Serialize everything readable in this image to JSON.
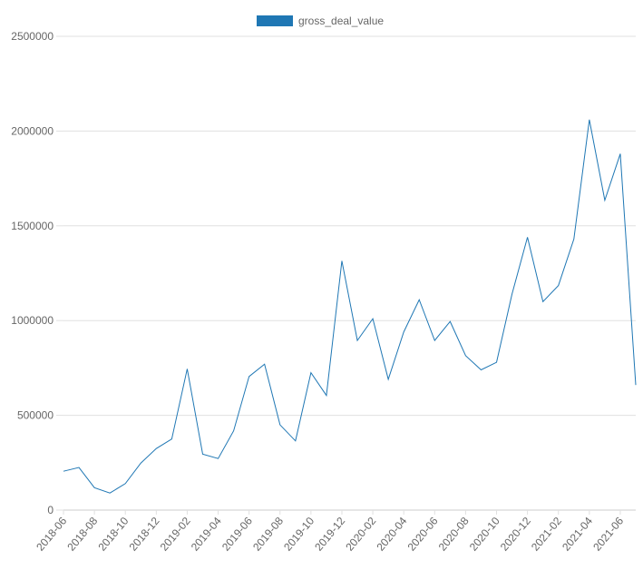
{
  "chart_data": {
    "type": "line",
    "title": "",
    "xlabel": "",
    "ylabel": "",
    "legend": {
      "position": "top-center"
    },
    "grid": {
      "y": true,
      "x": false
    },
    "ylim": [
      0,
      2500000
    ],
    "y_ticks": [
      0,
      500000,
      1000000,
      1500000,
      2000000,
      2500000
    ],
    "y_tick_labels": [
      "0",
      "500000",
      "1000000",
      "1500000",
      "2000000",
      "2500000"
    ],
    "categories": [
      "2018-06",
      "2018-07",
      "2018-08",
      "2018-09",
      "2018-10",
      "2018-11",
      "2018-12",
      "2019-01",
      "2019-02",
      "2019-03",
      "2019-04",
      "2019-05",
      "2019-06",
      "2019-07",
      "2019-08",
      "2019-09",
      "2019-10",
      "2019-11",
      "2019-12",
      "2020-01",
      "2020-02",
      "2020-03",
      "2020-04",
      "2020-05",
      "2020-06",
      "2020-07",
      "2020-08",
      "2020-09",
      "2020-10",
      "2020-11",
      "2020-12",
      "2021-01",
      "2021-02",
      "2021-03",
      "2021-04",
      "2021-05",
      "2021-06",
      "2021-07"
    ],
    "x_tick_labels": [
      "2018-06",
      "2018-08",
      "2018-10",
      "2018-12",
      "2019-02",
      "2019-04",
      "2019-06",
      "2019-08",
      "2019-10",
      "2019-12",
      "2020-02",
      "2020-04",
      "2020-06",
      "2020-08",
      "2020-10",
      "2020-12",
      "2021-02",
      "2021-04",
      "2021-06"
    ],
    "series": [
      {
        "name": "gross_deal_value",
        "color": "#1f77b4",
        "values": [
          205000,
          225000,
          118000,
          90000,
          140000,
          248000,
          325000,
          375000,
          745000,
          295000,
          272000,
          418000,
          705000,
          770000,
          450000,
          365000,
          725000,
          605000,
          1315000,
          895000,
          1010000,
          690000,
          940000,
          1110000,
          895000,
          995000,
          815000,
          740000,
          780000,
          1140000,
          1440000,
          1100000,
          1185000,
          1430000,
          2060000,
          1635000,
          1880000,
          660000
        ]
      }
    ]
  }
}
